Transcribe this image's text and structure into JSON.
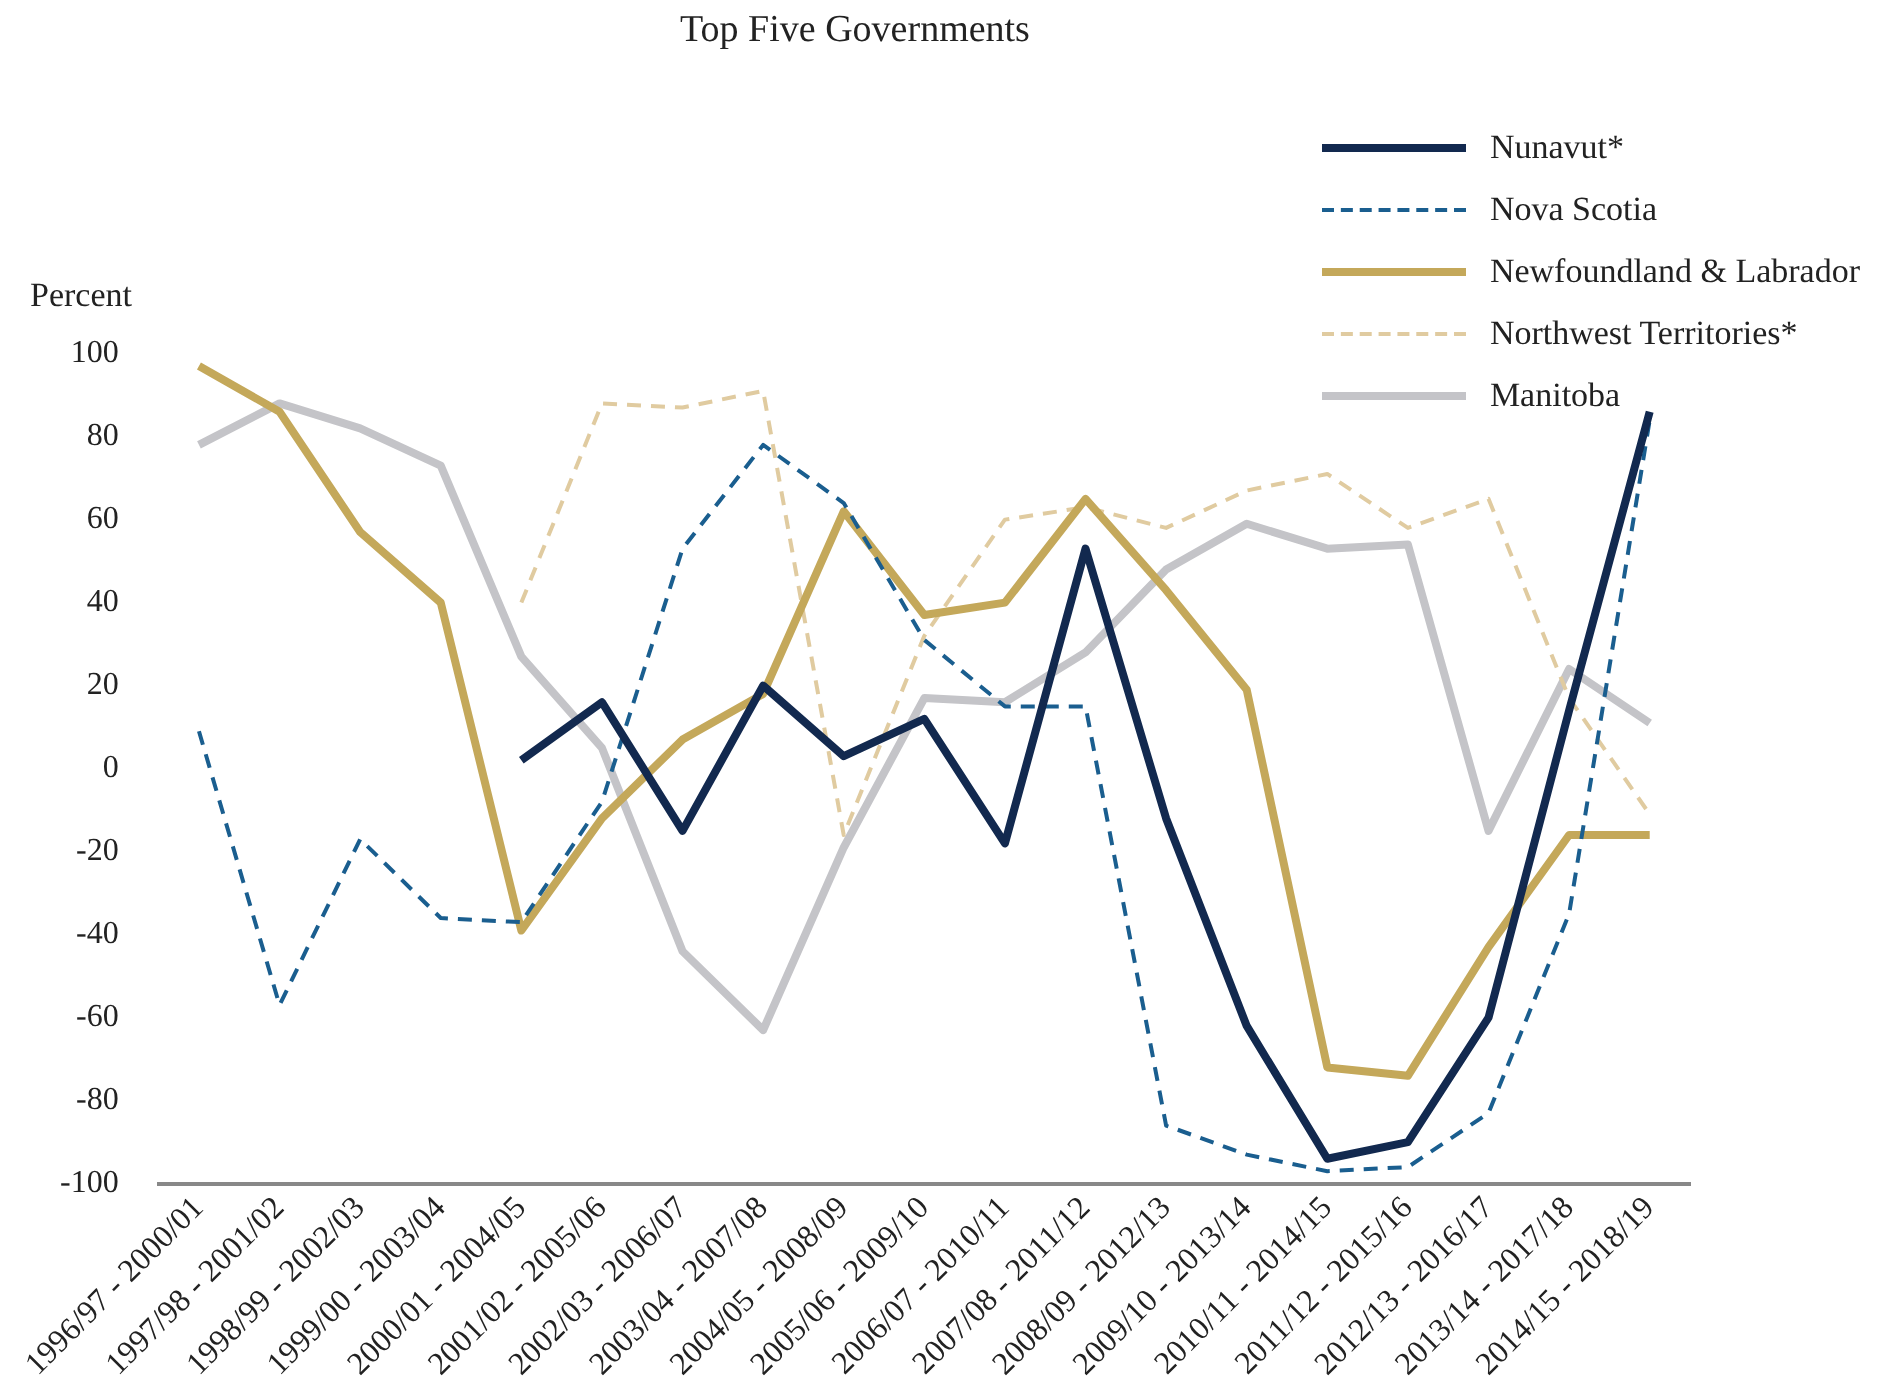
{
  "chart_data": {
    "type": "line",
    "title": "Top Five Governments",
    "ylabel": "Percent",
    "categories": [
      "1996/97 - 2000/01",
      "1997/98 - 2001/02",
      "1998/99 - 2002/03",
      "1999/00 - 2003/04",
      "2000/01 - 2004/05",
      "2001/02 - 2005/06",
      "2002/03 - 2006/07",
      "2003/04 - 2007/08",
      "2004/05 - 2008/09",
      "2005/06 - 2009/10",
      "2006/07 - 2010/11",
      "2007/08 - 2011/12",
      "2008/09 - 2012/13",
      "2009/10 - 2013/14",
      "2010/11 - 2014/15",
      "2011/12 - 2015/16",
      "2012/13 - 2016/17",
      "2013/14 - 2017/18",
      "2014/15 - 2018/19"
    ],
    "series": [
      {
        "name": "Nunavut*",
        "color": "#12294f",
        "line_style": "solid",
        "values": [
          null,
          null,
          null,
          null,
          2,
          16,
          -15,
          20,
          3,
          12,
          -18,
          53,
          -12,
          -62,
          -94,
          -90,
          -60,
          14,
          86
        ]
      },
      {
        "name": "Nova Scotia",
        "color": "#1a5e8f",
        "line_style": "dashed",
        "values": [
          9,
          -57,
          -17,
          -36,
          -37,
          -8,
          53,
          78,
          64,
          31,
          15,
          15,
          -86,
          -93,
          -97,
          -96,
          -83,
          -35,
          84
        ]
      },
      {
        "name": "Newfoundland & Labrador",
        "color": "#c4a85a",
        "line_style": "solid",
        "values": [
          97,
          86,
          57,
          40,
          -39,
          -12,
          7,
          18,
          62,
          37,
          40,
          65,
          43,
          19,
          -72,
          -74,
          -43,
          -16,
          -16
        ]
      },
      {
        "name": "Northwest Territories*",
        "color": "#e0cba0",
        "line_style": "dashed",
        "values": [
          null,
          null,
          null,
          null,
          40,
          88,
          87,
          91,
          -16,
          32,
          60,
          63,
          58,
          67,
          71,
          58,
          65,
          17,
          -11
        ]
      },
      {
        "name": "Manitoba",
        "color": "#c4c4c8",
        "line_style": "solid",
        "values": [
          78,
          88,
          82,
          73,
          27,
          5,
          -44,
          -63,
          -19,
          17,
          16,
          28,
          48,
          59,
          53,
          54,
          -15,
          24,
          11
        ]
      }
    ],
    "ylim": [
      -100,
      100
    ],
    "yticks": [
      -100,
      -80,
      -60,
      -40,
      -20,
      0,
      20,
      40,
      60,
      80,
      100
    ],
    "grid": false,
    "legend": "top right",
    "marker": "none"
  }
}
